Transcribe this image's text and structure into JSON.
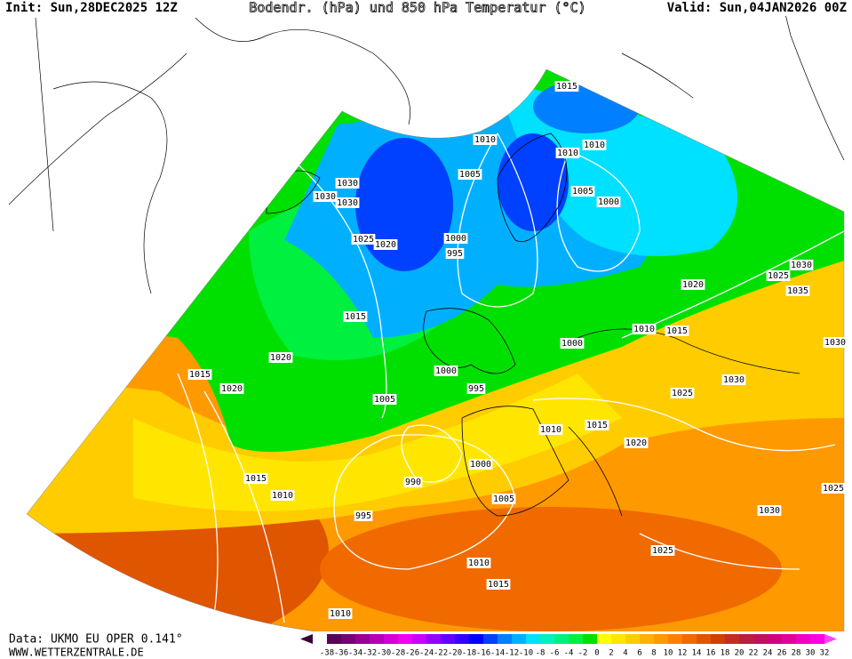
{
  "header": {
    "init": "Init: Sun,28DEC2025 12Z",
    "title": "Bodendr. (hPa) und 850 hPa Temperatur (°C)",
    "valid": "Valid: Sun,04JAN2026 00Z"
  },
  "footer": {
    "source": "Data: UKMO EU OPER 0.141°",
    "website": "WWW.WETTERZENTRALE.DE"
  },
  "colorbar": {
    "labels": [
      "-38",
      "-36",
      "-34",
      "-32",
      "-30",
      "-28",
      "-26",
      "-24",
      "-22",
      "-20",
      "-18",
      "-16",
      "-14",
      "-12",
      "-10",
      "-8",
      "-6",
      "-4",
      "-2",
      "0",
      "2",
      "4",
      "6",
      "8",
      "10",
      "12",
      "14",
      "16",
      "18",
      "20",
      "22",
      "24",
      "26",
      "28",
      "30",
      "32"
    ],
    "colors": [
      "#3a003a",
      "#5a005a",
      "#780078",
      "#960096",
      "#b400b4",
      "#d200d2",
      "#f000f0",
      "#c800ff",
      "#9600ff",
      "#6400ff",
      "#3200ff",
      "#0000ff",
      "#0040ff",
      "#0080ff",
      "#00b0ff",
      "#00e0ff",
      "#00f0c0",
      "#00f080",
      "#00f040",
      "#00e000",
      "#ffff00",
      "#ffe600",
      "#ffcc00",
      "#ffb300",
      "#ff9900",
      "#ff8000",
      "#f06a00",
      "#e05500",
      "#d04000",
      "#c03020",
      "#b82040",
      "#c01060",
      "#d00080",
      "#e000a0",
      "#f000c0",
      "#ff00e0",
      "#ff40ff"
    ]
  },
  "isobar_labels": [
    "1015",
    "1010",
    "1010",
    "1010",
    "1005",
    "1005",
    "1000",
    "1030",
    "1030",
    "1030",
    "1025",
    "1020",
    "1000",
    "995",
    "1015",
    "1020",
    "1015",
    "1020",
    "1005",
    "1000",
    "995",
    "1000",
    "1010",
    "1015",
    "1020",
    "1025",
    "1030",
    "1020",
    "1030",
    "1025",
    "1035",
    "1030",
    "1015",
    "1010",
    "990",
    "1000",
    "995",
    "1005",
    "1030",
    "1025",
    "1025",
    "1010",
    "1015",
    "1010",
    "1015",
    "1010"
  ]
}
